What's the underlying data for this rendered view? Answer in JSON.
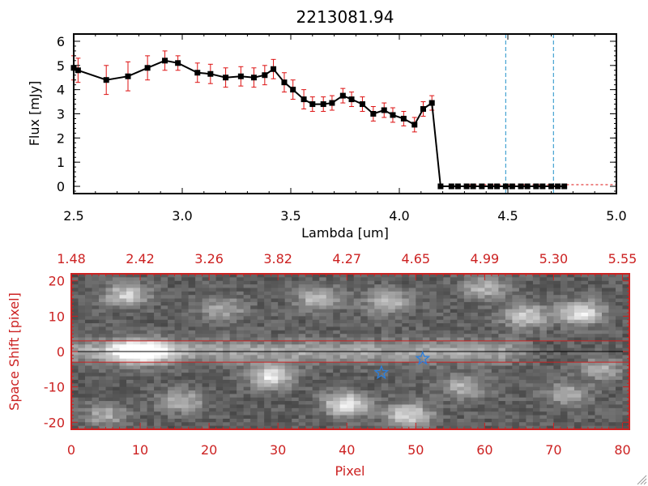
{
  "colors": {
    "axis": "#000000",
    "accent": "#cc2222",
    "errorbar": "#dd1111",
    "marker": "#000000",
    "dashed": "#1e90c8",
    "star": "#2a7fdd",
    "image_bg": "#111111"
  },
  "chart_data": [
    {
      "type": "line",
      "title": "2213081.94",
      "xlabel": "Lambda [um]",
      "ylabel": "Flux [mJy]",
      "xlim": [
        2.5,
        5.0
      ],
      "ylim": [
        -0.3,
        6.3
      ],
      "xticks": [
        2.5,
        3.0,
        3.5,
        4.0,
        4.5,
        5.0
      ],
      "xtick_labels": [
        "2.5",
        "3.0",
        "3.5",
        "4.0",
        "4.5",
        "5.0"
      ],
      "yticks": [
        0,
        1,
        2,
        3,
        4,
        5,
        6
      ],
      "ytick_labels": [
        "0",
        "1",
        "2",
        "3",
        "4",
        "5",
        "6"
      ],
      "dashed_vlines": [
        4.49,
        4.71
      ],
      "series": [
        {
          "name": "flux",
          "x": [
            2.5,
            2.52,
            2.65,
            2.75,
            2.84,
            2.92,
            2.98,
            3.07,
            3.13,
            3.2,
            3.27,
            3.33,
            3.38,
            3.42,
            3.47,
            3.51,
            3.56,
            3.6,
            3.65,
            3.69,
            3.74,
            3.78,
            3.83,
            3.88,
            3.93,
            3.97,
            4.02,
            4.07,
            4.11,
            4.15,
            4.19,
            4.24,
            4.27,
            4.31,
            4.34,
            4.38,
            4.42,
            4.45,
            4.49,
            4.52,
            4.56,
            4.59,
            4.63,
            4.66,
            4.7,
            4.73,
            4.76
          ],
          "y": [
            4.9,
            4.8,
            4.4,
            4.55,
            4.9,
            5.2,
            5.1,
            4.7,
            4.65,
            4.5,
            4.55,
            4.5,
            4.6,
            4.85,
            4.3,
            4.0,
            3.6,
            3.4,
            3.4,
            3.45,
            3.75,
            3.6,
            3.4,
            3.0,
            3.15,
            2.95,
            2.8,
            2.55,
            3.2,
            3.45,
            0.0,
            0.0,
            0.0,
            0.0,
            0.0,
            0.0,
            0.0,
            0.0,
            0.0,
            0.0,
            0.0,
            0.0,
            0.0,
            0.0,
            0.0,
            0.0,
            0.0
          ],
          "err": [
            0.5,
            0.5,
            0.6,
            0.6,
            0.5,
            0.4,
            0.3,
            0.4,
            0.4,
            0.4,
            0.4,
            0.4,
            0.4,
            0.4,
            0.4,
            0.4,
            0.4,
            0.3,
            0.3,
            0.3,
            0.3,
            0.3,
            0.3,
            0.3,
            0.3,
            0.3,
            0.3,
            0.3,
            0.3,
            0.3,
            0,
            0,
            0,
            0,
            0,
            0,
            0,
            0,
            0,
            0,
            0,
            0,
            0,
            0,
            0,
            0,
            0
          ]
        }
      ]
    },
    {
      "type": "heatmap",
      "xlabel": "Pixel",
      "ylabel": "Space Shift [pixel]",
      "xlim": [
        0,
        81
      ],
      "ylim": [
        -22,
        22
      ],
      "xticks": [
        0,
        10,
        20,
        30,
        40,
        50,
        60,
        70,
        80
      ],
      "xtick_labels": [
        "0",
        "10",
        "20",
        "30",
        "40",
        "50",
        "60",
        "70",
        "80"
      ],
      "yticks": [
        -20,
        -10,
        0,
        10,
        20
      ],
      "ytick_labels": [
        "-20",
        "-10",
        "0",
        "10",
        "20"
      ],
      "top_axis_label_positions": [
        0,
        10,
        20,
        30,
        40,
        50,
        60,
        70,
        80
      ],
      "top_axis_labels": [
        "1.48",
        "2.42",
        "3.26",
        "3.82",
        "4.27",
        "4.65",
        "4.99",
        "5.30",
        "5.55"
      ],
      "hlines": [
        3,
        -3
      ],
      "trace_center": 0,
      "peak_pixel": 10,
      "markers": [
        {
          "name": "star-1",
          "x": 45,
          "y": -6
        },
        {
          "name": "star-2",
          "x": 51,
          "y": -2
        }
      ],
      "blobs": [
        {
          "x": 8,
          "y": 16,
          "v": 0.45
        },
        {
          "x": 16,
          "y": -14,
          "v": 0.35
        },
        {
          "x": 29,
          "y": -7,
          "v": 0.55
        },
        {
          "x": 36,
          "y": 15,
          "v": 0.4
        },
        {
          "x": 46,
          "y": 14,
          "v": 0.4
        },
        {
          "x": 40,
          "y": -15,
          "v": 0.6
        },
        {
          "x": 49,
          "y": -18,
          "v": 0.5
        },
        {
          "x": 57,
          "y": -10,
          "v": 0.35
        },
        {
          "x": 66,
          "y": 10,
          "v": 0.45
        },
        {
          "x": 74,
          "y": 11,
          "v": 0.55
        },
        {
          "x": 72,
          "y": -12,
          "v": 0.3
        },
        {
          "x": 5,
          "y": -18,
          "v": 0.3
        },
        {
          "x": 22,
          "y": 12,
          "v": 0.3
        },
        {
          "x": 60,
          "y": 18,
          "v": 0.35
        },
        {
          "x": 77,
          "y": -5,
          "v": 0.3
        }
      ]
    }
  ]
}
